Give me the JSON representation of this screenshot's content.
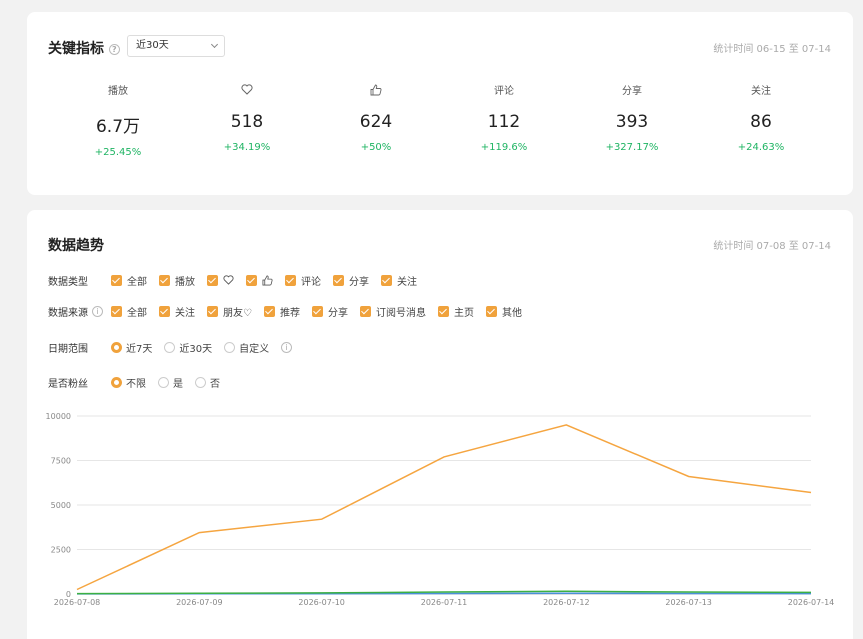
{
  "metrics_card": {
    "title": "关键指标",
    "range_select": "近30天",
    "stat_time": "统计时间 06-15 至 07-14",
    "metrics": [
      {
        "label": "播放",
        "icon": "play-label",
        "value": "6.7万",
        "change": "+25.45%"
      },
      {
        "label": "",
        "icon": "heart-icon",
        "value": "518",
        "change": "+34.19%"
      },
      {
        "label": "",
        "icon": "thumbs-up-icon",
        "value": "624",
        "change": "+50%"
      },
      {
        "label": "评论",
        "icon": "comment-label",
        "value": "112",
        "change": "+119.6%"
      },
      {
        "label": "分享",
        "icon": "share-label",
        "value": "393",
        "change": "+327.17%"
      },
      {
        "label": "关注",
        "icon": "follow-label",
        "value": "86",
        "change": "+24.63%"
      }
    ]
  },
  "trend_card": {
    "title": "数据趋势",
    "stat_time": "统计时间 07-08 至 07-14",
    "data_type": {
      "label": "数据类型",
      "options": [
        "全部",
        "播放",
        "",
        "",
        "评论",
        "分享",
        "关注"
      ]
    },
    "data_source": {
      "label": "数据来源",
      "options": [
        "全部",
        "关注",
        "朋友♡",
        "推荐",
        "分享",
        "订阅号消息",
        "主页",
        "其他"
      ]
    },
    "date_range": {
      "label": "日期范围",
      "options": [
        "近7天",
        "近30天",
        "自定义"
      ],
      "selected": 0
    },
    "is_fan": {
      "label": "是否粉丝",
      "options": [
        "不限",
        "是",
        "否"
      ],
      "selected": 0
    }
  },
  "colors": {
    "accent": "#f0a23c",
    "positive": "#1fb463",
    "line_orange": "#f5a540",
    "line_green": "#3cb043"
  },
  "chart_data": {
    "type": "line",
    "x": [
      "2026-07-08",
      "2026-07-09",
      "2026-07-10",
      "2026-07-11",
      "2026-07-12",
      "2026-07-13",
      "2026-07-14"
    ],
    "yticks": [
      "0",
      "2500",
      "5000",
      "7500",
      "10000"
    ],
    "ylim": [
      0,
      10000
    ],
    "series": [
      {
        "values": [
          250,
          3450,
          4200,
          7700,
          9500,
          6600,
          5700
        ],
        "color": "#f5a540"
      },
      {
        "values": [
          20,
          40,
          60,
          110,
          150,
          110,
          90
        ],
        "color": "#3cb043"
      },
      {
        "values": [
          5,
          10,
          15,
          30,
          40,
          30,
          25
        ],
        "color": "#4a90d9"
      }
    ],
    "grid": true
  }
}
